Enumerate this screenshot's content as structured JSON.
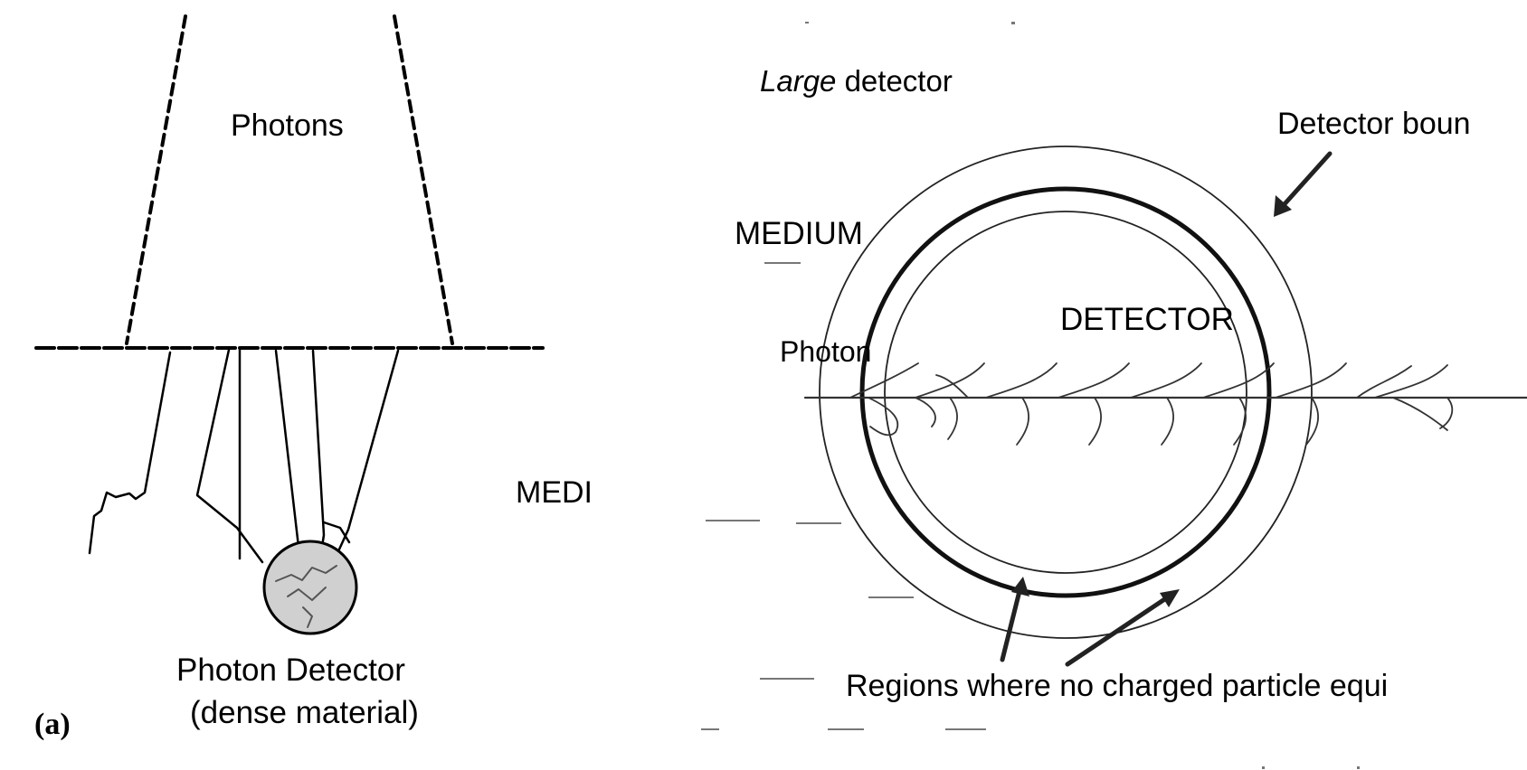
{
  "left_panel": {
    "photons_label": "Photons",
    "medium_label": "MEDI",
    "detector_label_line1": "Photon Detector",
    "detector_label_line2": "(dense material)",
    "panel_letter": "(a)"
  },
  "right_panel": {
    "size_label_italic": "Large",
    "size_label_rest": " detector",
    "boundary_label": "Detector boun",
    "medium_label": "MEDIUM",
    "detector_label": "DETECTOR",
    "photon_label": "Photon",
    "regions_label": "Regions where no charged particle equi"
  }
}
